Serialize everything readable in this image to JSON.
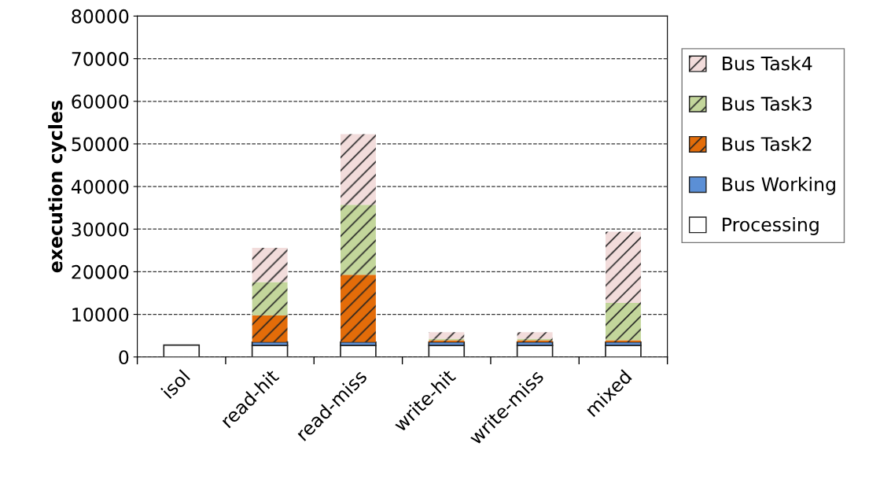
{
  "chart_data": {
    "type": "bar",
    "stacked": true,
    "ylabel": "execution cycles",
    "categories": [
      "isol",
      "read-hit",
      "read-miss",
      "write-hit",
      "write-miss",
      "mixed"
    ],
    "series": [
      {
        "name": "Processing",
        "color": "#ffffff",
        "values": [
          2800,
          2700,
          2700,
          2700,
          2700,
          2700
        ]
      },
      {
        "name": "Bus Working",
        "color": "#5b8fd6",
        "values": [
          null,
          800,
          800,
          800,
          800,
          800
        ]
      },
      {
        "name": "Bus Task2",
        "color": "#e36c09",
        "values": [
          null,
          6300,
          15800,
          400,
          400,
          400
        ]
      },
      {
        "name": "Bus Task3",
        "color": "#c3d69b",
        "values": [
          null,
          7800,
          16400,
          400,
          400,
          8800
        ]
      },
      {
        "name": "Bus Task4",
        "color": "#f2dcdb",
        "values": [
          null,
          8000,
          16600,
          1500,
          1500,
          16700
        ]
      }
    ],
    "ylim": [
      0,
      80000
    ],
    "yticks": [
      0,
      10000,
      20000,
      30000,
      40000,
      50000,
      60000,
      70000,
      80000
    ],
    "grid": "y",
    "legend": "right"
  }
}
